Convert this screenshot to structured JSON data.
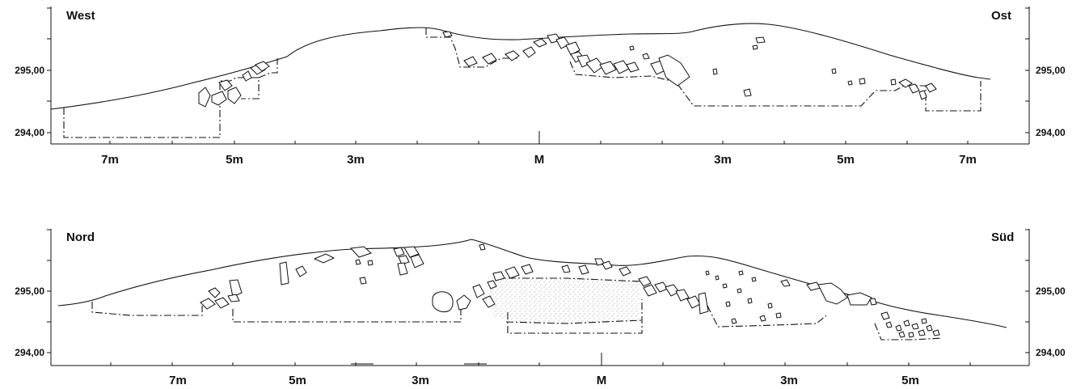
{
  "profiles": [
    {
      "id": "west-ost",
      "left_label": "West",
      "right_label": "Ost",
      "elevation_labels": [
        "295,00",
        "294,00"
      ],
      "distance_labels": [
        "7m",
        "5m",
        "3m",
        "M",
        "3m",
        "5m",
        "7m"
      ]
    },
    {
      "id": "nord-sued",
      "left_label": "Nord",
      "right_label": "Süd",
      "elevation_labels": [
        "295,00",
        "294,00"
      ],
      "distance_labels": [
        "7m",
        "5m",
        "3m",
        "M",
        "3m",
        "5m"
      ]
    }
  ]
}
